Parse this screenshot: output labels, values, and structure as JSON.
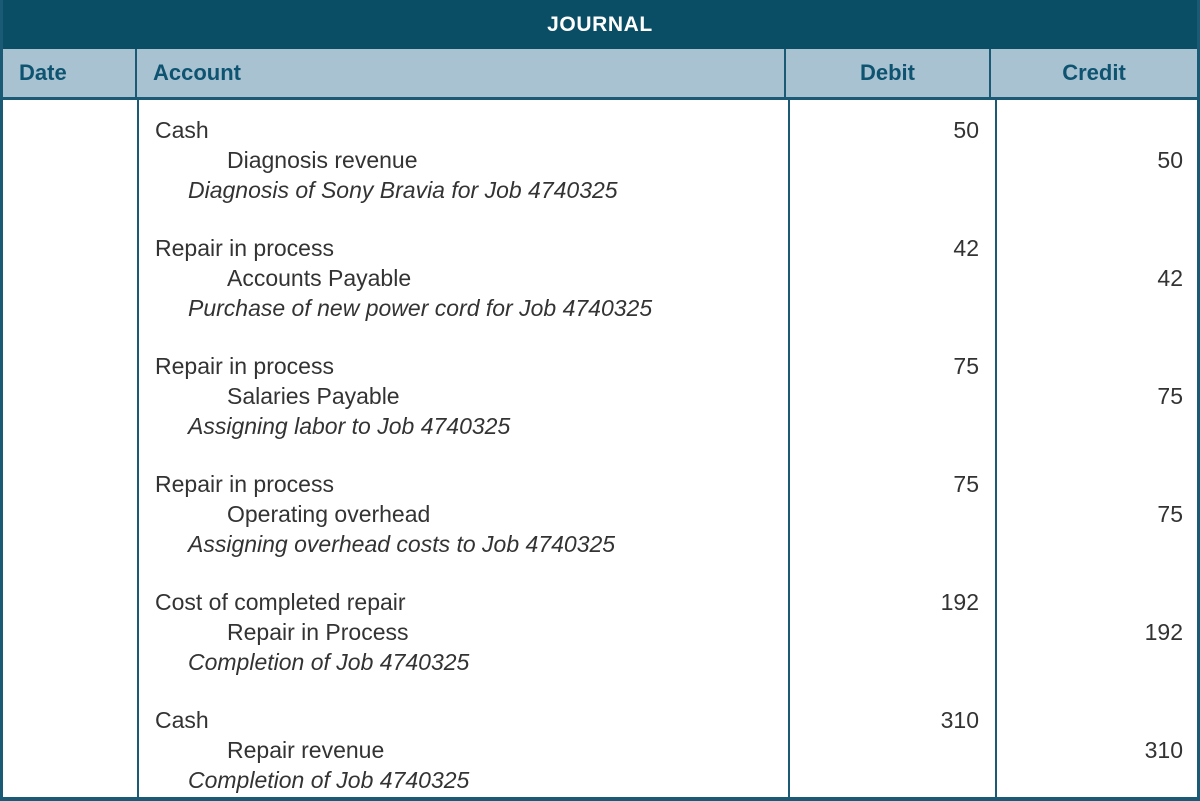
{
  "title": "JOURNAL",
  "columns": {
    "date": "Date",
    "account": "Account",
    "debit": "Debit",
    "credit": "Credit"
  },
  "colors": {
    "title_bar_bg": "#0a4e66",
    "title_text": "#ffffff",
    "header_row_bg": "#a9c2d2",
    "header_text": "#0e5370",
    "border": "#1a5a75",
    "body_text": "#333333"
  },
  "entries": [
    {
      "debit_account": "Cash",
      "credit_account": "Diagnosis revenue",
      "memo": "Diagnosis of Sony Bravia for Job 4740325",
      "debit": "50",
      "credit": "50"
    },
    {
      "debit_account": "Repair in process",
      "credit_account": "Accounts Payable",
      "memo": "Purchase of new power cord for Job 4740325",
      "debit": "42",
      "credit": "42"
    },
    {
      "debit_account": "Repair in process",
      "credit_account": "Salaries Payable",
      "memo": "Assigning labor to Job 4740325",
      "debit": "75",
      "credit": "75"
    },
    {
      "debit_account": "Repair in process",
      "credit_account": "Operating overhead",
      "memo": "Assigning overhead costs to Job 4740325",
      "debit": "75",
      "credit": "75"
    },
    {
      "debit_account": "Cost of completed repair",
      "credit_account": "Repair in Process",
      "memo": "Completion of Job 4740325",
      "debit": "192",
      "credit": "192"
    },
    {
      "debit_account": "Cash",
      "credit_account": "Repair revenue",
      "memo": "Completion of Job 4740325",
      "debit": "310",
      "credit": "310"
    }
  ]
}
